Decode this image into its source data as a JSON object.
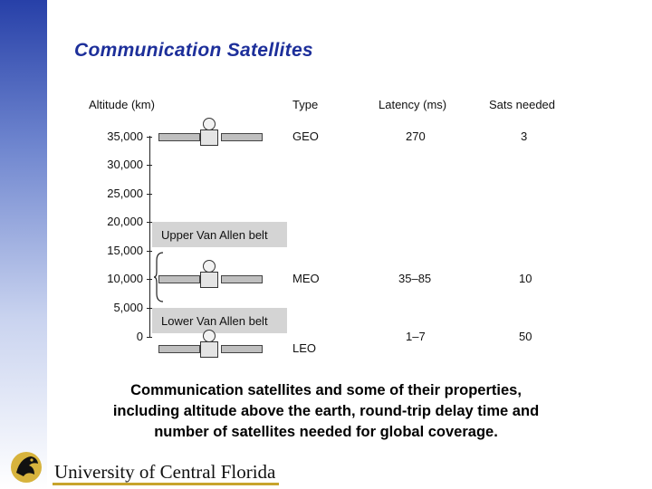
{
  "slide": {
    "title": "Communication Satellites",
    "caption_lines": [
      "Communication satellites and some of their properties,",
      "including altitude above the earth, round-trip delay time and",
      "number of satellites needed for global coverage."
    ]
  },
  "figure": {
    "headers": {
      "altitude": "Altitude (km)",
      "type": "Type",
      "latency": "Latency (ms)",
      "sats": "Sats needed"
    },
    "altitude_ticks": [
      "35,000",
      "30,000",
      "25,000",
      "20,000",
      "15,000",
      "10,000",
      "5,000",
      "0"
    ],
    "belts": {
      "upper": "Upper Van Allen belt",
      "lower": "Lower Van Allen belt"
    },
    "rows": [
      {
        "type": "GEO",
        "latency": "270",
        "sats": "3"
      },
      {
        "type": "MEO",
        "latency": "35–85",
        "sats": "10"
      },
      {
        "type": "LEO",
        "latency": "1–7",
        "sats": "50"
      }
    ]
  },
  "footer": {
    "university": "University of Central Florida"
  },
  "colors": {
    "title": "#1d2f9a",
    "sidebar_top": "#2740a8",
    "footer_accent": "#c8a42c",
    "belt": "#d4d4d4"
  },
  "icons": {
    "satellite": "satellite-icon",
    "logo": "pegasus-logo-icon"
  }
}
